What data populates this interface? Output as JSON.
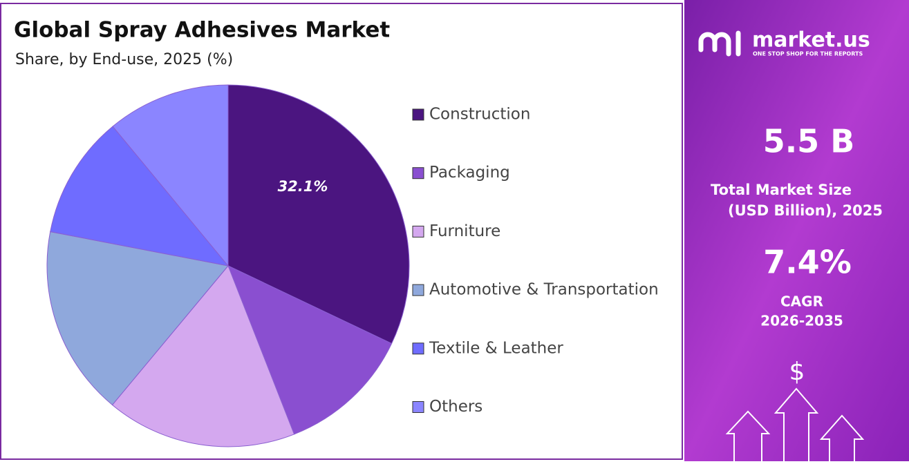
{
  "chart_data": {
    "type": "pie",
    "title": "Global Spray Adhesives Market",
    "subtitle": "Share, by End-use, 2025 (%)",
    "categories": [
      "Construction",
      "Packaging",
      "Furniture",
      "Automotive & Transportation",
      "Textile & Leather",
      "Others"
    ],
    "values": [
      32.1,
      12,
      17,
      17,
      11,
      11
    ],
    "value_labels": [
      "32.1%",
      null,
      null,
      null,
      null,
      null
    ],
    "colors": [
      "#4b1580",
      "#8a4fd0",
      "#d4a8ef",
      "#8fa8dc",
      "#6f6cff",
      "#8b85ff"
    ],
    "legend": "right"
  },
  "sidebar": {
    "brand": "market.us",
    "tagline": "ONE STOP SHOP FOR THE REPORTS",
    "market_size": "5.5 B",
    "market_size_label": "Total Market Size",
    "market_size_unit": "(USD Billion), 2025",
    "cagr": "7.4%",
    "cagr_label": "CAGR",
    "cagr_period": "2026-2035",
    "icon_symbol": "$"
  }
}
